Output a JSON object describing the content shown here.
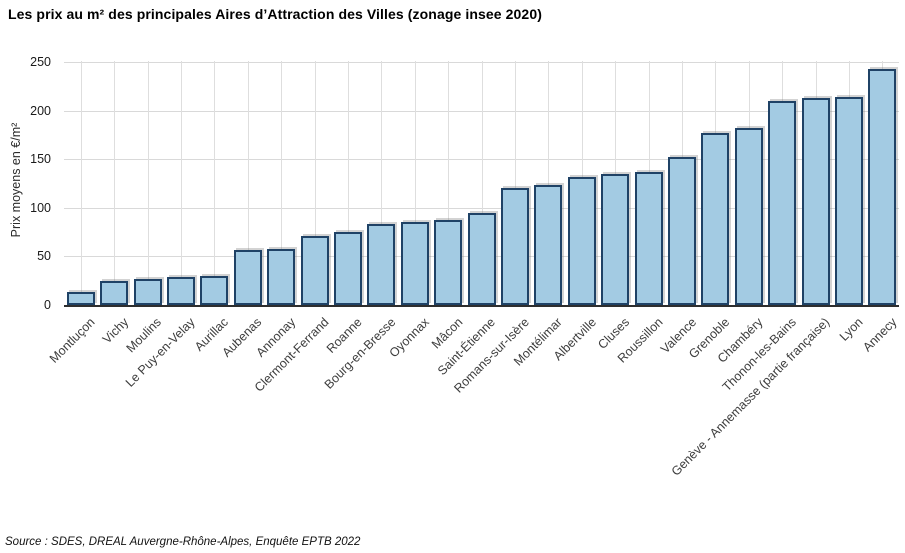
{
  "title": "Les prix au m² des principales Aires d’Attraction des Villes (zonage insee 2020)",
  "source": "Source : SDES, DREAL Auvergne-Rhône-Alpes, Enquête EPTB 2022",
  "colors": {
    "bar_fill": "#a3cbe3",
    "bar_border": "#1f4266",
    "gridline": "#d9d9d9",
    "axis_line": "#2e2e2e",
    "background": "#ffffff"
  },
  "chart_data": {
    "type": "bar",
    "title": "Les prix au m² des principales Aires d’Attraction des Villes (zonage insee 2020)",
    "xlabel": "",
    "ylabel": "Prix moyens en €/m²",
    "ylim": [
      0,
      250
    ],
    "yticks": [
      0,
      50,
      100,
      150,
      200,
      250
    ],
    "grid": true,
    "legend": "none",
    "bar_fill": "#a3cbe3",
    "bar_border": "#1f4266",
    "categories": [
      "Montluçon",
      "Vichy",
      "Moulins",
      "Le Puy-en-Velay",
      "Aurillac",
      "Aubenas",
      "Annonay",
      "Clermont-Ferrand",
      "Roanne",
      "Bourg-en-Bresse",
      "Oyonnax",
      "Mâcon",
      "Saint-Étienne",
      "Romans-sur-Isère",
      "Montélimar",
      "Albertville",
      "Cluses",
      "Roussillon",
      "Valence",
      "Grenoble",
      "Chambéry",
      "Thonon-les-Bains",
      "Genève - Annemasse (partie française)",
      "Lyon",
      "Annecy"
    ],
    "values": [
      13,
      25,
      27,
      29,
      30,
      57,
      58,
      71,
      75,
      83,
      85,
      87,
      95,
      120,
      123,
      132,
      135,
      137,
      152,
      177,
      182,
      210,
      213,
      214,
      243
    ]
  }
}
